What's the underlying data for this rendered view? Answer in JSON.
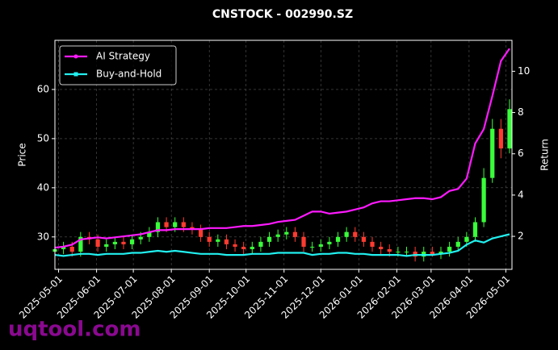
{
  "chart_data": {
    "type": "candlestick",
    "title": "CNSTOCK - 002990.SZ",
    "ylabel": "Price",
    "y2label": "Return",
    "watermark": "uqtool.com",
    "grid": true,
    "legend": "upper left",
    "up_color": "#39ff3a",
    "down_color": "#ff3b30",
    "xlim": [
      "2025-04-28",
      "2026-05-06"
    ],
    "xticks": [
      "2025-05-01",
      "2025-06-01",
      "2025-07-01",
      "2025-08-01",
      "2025-09-01",
      "2025-10-01",
      "2025-11-01",
      "2025-12-01",
      "2026-01-01",
      "2026-02-01",
      "2026-03-01",
      "2026-04-01",
      "2026-05-01"
    ],
    "ylim": [
      23.4,
      70
    ],
    "yticks": [
      30,
      40,
      50,
      60
    ],
    "y2lim": [
      0.4,
      11.5
    ],
    "y2ticks": [
      2,
      4,
      6,
      8,
      10
    ],
    "x": [
      "2025-04-28",
      "2025-05-05",
      "2025-05-12",
      "2025-05-19",
      "2025-05-26",
      "2025-06-02",
      "2025-06-09",
      "2025-06-16",
      "2025-06-23",
      "2025-06-30",
      "2025-07-07",
      "2025-07-14",
      "2025-07-21",
      "2025-07-28",
      "2025-08-04",
      "2025-08-11",
      "2025-08-18",
      "2025-08-25",
      "2025-09-01",
      "2025-09-08",
      "2025-09-15",
      "2025-09-22",
      "2025-09-29",
      "2025-10-06",
      "2025-10-13",
      "2025-10-20",
      "2025-10-27",
      "2025-11-03",
      "2025-11-10",
      "2025-11-17",
      "2025-11-24",
      "2025-12-01",
      "2025-12-08",
      "2025-12-15",
      "2025-12-22",
      "2025-12-29",
      "2026-01-05",
      "2026-01-12",
      "2026-01-19",
      "2026-01-26",
      "2026-02-02",
      "2026-02-09",
      "2026-02-16",
      "2026-02-23",
      "2026-03-02",
      "2026-03-09",
      "2026-03-16",
      "2026-03-23",
      "2026-03-30",
      "2026-04-06",
      "2026-04-13",
      "2026-04-20",
      "2026-04-27",
      "2026-05-04"
    ],
    "open": [
      27,
      27.5,
      28,
      27,
      30,
      29.5,
      28,
      28.5,
      29,
      28.5,
      29.5,
      30,
      31,
      33,
      32,
      33,
      32,
      31.5,
      30,
      29,
      29.5,
      28.5,
      28,
      27.5,
      28,
      29,
      30,
      30.5,
      31,
      30,
      28,
      28,
      28.5,
      29,
      30,
      31,
      30,
      29,
      28,
      27.5,
      27,
      27,
      27,
      26,
      27,
      26.5,
      27,
      28,
      29,
      30,
      33,
      42,
      52,
      48
    ],
    "high": [
      28.5,
      29,
      29,
      31,
      31,
      30.5,
      29.5,
      30,
      30,
      30.5,
      31,
      32,
      34,
      34,
      34,
      34,
      33,
      32.5,
      31,
      30.5,
      30.5,
      29.5,
      29,
      29,
      30,
      31,
      31.5,
      32,
      32,
      31,
      29,
      29.5,
      30,
      31,
      32,
      32,
      31,
      30,
      29,
      28.5,
      28,
      28,
      28,
      28,
      28,
      28,
      29,
      30,
      31,
      34,
      44,
      54,
      54,
      58
    ],
    "low": [
      26,
      26.5,
      26,
      26,
      28.5,
      27,
      27,
      27.5,
      27.5,
      27.5,
      28.5,
      29,
      30,
      31,
      31,
      31,
      30.5,
      29,
      28,
      28,
      27.5,
      27,
      26.5,
      26.5,
      27,
      28,
      29,
      29.5,
      29,
      27,
      27,
      27,
      27.5,
      28,
      29,
      29,
      28,
      27,
      26.5,
      26,
      26,
      26,
      25,
      25,
      26,
      25.5,
      26,
      27,
      28,
      29,
      32,
      41,
      46,
      47
    ],
    "close": [
      27.5,
      28,
      27,
      30,
      29.5,
      28,
      28.5,
      29,
      28.5,
      29.5,
      30,
      31,
      33,
      32,
      33,
      32,
      31.5,
      30,
      29,
      29.5,
      28.5,
      28,
      27.5,
      28,
      29,
      30,
      30.5,
      31,
      30,
      28,
      28,
      28.5,
      29,
      30,
      31,
      30,
      29,
      28,
      27.5,
      27,
      27,
      27,
      26,
      27,
      26.5,
      27,
      28,
      29,
      30,
      33,
      42,
      52,
      48,
      56
    ],
    "series": [
      {
        "name": "AI Strategy",
        "color": "#ff1aff",
        "axis": "y2",
        "values": [
          1.45,
          1.5,
          1.6,
          1.85,
          1.9,
          1.95,
          1.9,
          1.95,
          2.0,
          2.05,
          2.1,
          2.2,
          2.3,
          2.3,
          2.35,
          2.35,
          2.35,
          2.35,
          2.4,
          2.4,
          2.4,
          2.45,
          2.5,
          2.5,
          2.55,
          2.6,
          2.7,
          2.75,
          2.8,
          3.0,
          3.2,
          3.2,
          3.1,
          3.15,
          3.2,
          3.3,
          3.4,
          3.6,
          3.7,
          3.7,
          3.75,
          3.8,
          3.85,
          3.85,
          3.8,
          3.9,
          4.2,
          4.3,
          4.8,
          6.5,
          7.2,
          8.8,
          10.5,
          11.1
        ]
      },
      {
        "name": "Buy-and-Hold",
        "color": "#22f0f0",
        "axis": "y2",
        "values": [
          1.1,
          1.05,
          1.1,
          1.15,
          1.15,
          1.1,
          1.15,
          1.15,
          1.15,
          1.2,
          1.2,
          1.25,
          1.3,
          1.25,
          1.3,
          1.25,
          1.2,
          1.15,
          1.15,
          1.15,
          1.1,
          1.1,
          1.1,
          1.15,
          1.15,
          1.15,
          1.2,
          1.2,
          1.2,
          1.2,
          1.1,
          1.15,
          1.15,
          1.2,
          1.2,
          1.15,
          1.15,
          1.1,
          1.1,
          1.1,
          1.1,
          1.05,
          1.1,
          1.1,
          1.1,
          1.15,
          1.2,
          1.3,
          1.6,
          1.8,
          1.7,
          1.9,
          2.0,
          2.1
        ]
      }
    ]
  }
}
